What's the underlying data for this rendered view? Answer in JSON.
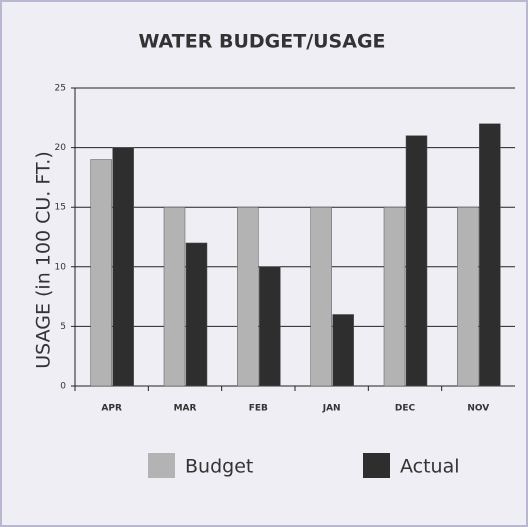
{
  "chart_data": {
    "type": "bar",
    "title": "WATER BUDGET/USAGE",
    "ylabel": "USAGE (in 100 CU. FT.)",
    "categories": [
      "APR",
      "MAR",
      "FEB",
      "JAN",
      "DEC",
      "NOV"
    ],
    "series": [
      {
        "name": "Budget",
        "color": "#b3b3b3",
        "values": [
          19,
          15,
          15,
          15,
          15,
          15
        ]
      },
      {
        "name": "Actual",
        "color": "#2e2e2e",
        "values": [
          20,
          12,
          10,
          6,
          21,
          22
        ]
      }
    ],
    "ylim": [
      0,
      25
    ],
    "yticks": [
      0,
      5,
      10,
      15,
      20,
      25
    ],
    "grid": true,
    "legend": "bottom"
  }
}
